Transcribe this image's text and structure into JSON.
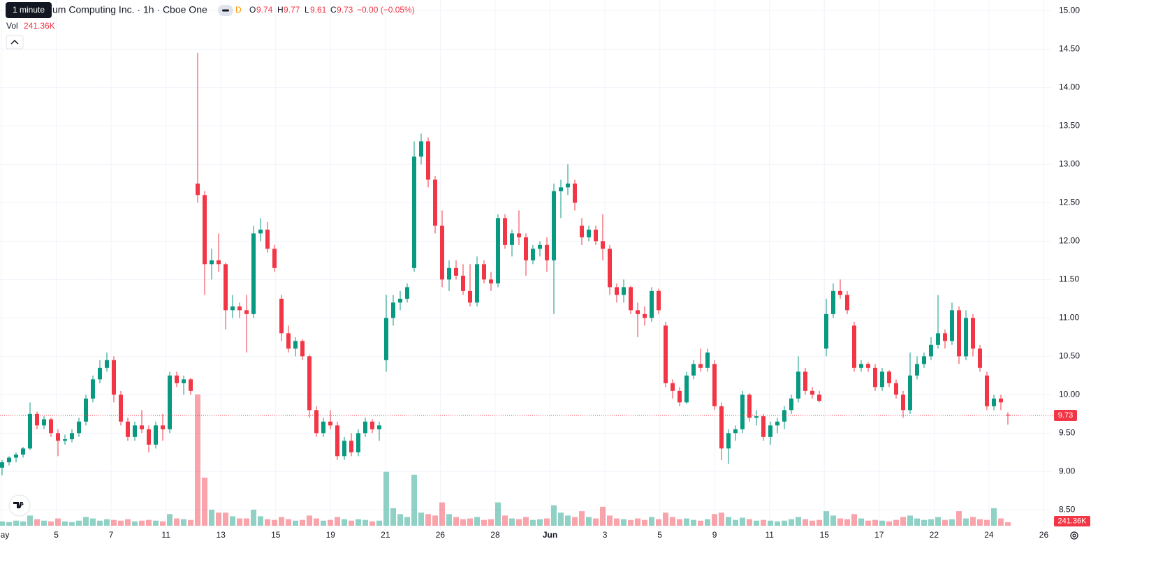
{
  "chart_data": {
    "type": "candlestick",
    "tooltip": "1 minute",
    "title": "um Computing Inc. · 1h · Cboe One",
    "badge": "D",
    "ohlc_labels": [
      "O",
      "H",
      "L",
      "C"
    ],
    "change": "−0.00 (−0.05%)",
    "volume_title": "Vol",
    "volume_label": "241.36K",
    "up_color": "#089981",
    "down_color": "#f23645",
    "grid": true,
    "ylim": [
      8.23,
      15.14
    ],
    "yticks": [
      {
        "value": 8.5,
        "label": "8.50"
      },
      {
        "value": 9,
        "label": "9.00"
      },
      {
        "value": 9.5,
        "label": "9.50"
      },
      {
        "value": 10,
        "label": "10.00"
      },
      {
        "value": 10.5,
        "label": "10.50"
      },
      {
        "value": 11,
        "label": "11.00"
      },
      {
        "value": 11.5,
        "label": "11.50"
      },
      {
        "value": 12,
        "label": "12.00"
      },
      {
        "value": 12.5,
        "label": "12.50"
      },
      {
        "value": 13,
        "label": "13.00"
      },
      {
        "value": 13.5,
        "label": "13.50"
      },
      {
        "value": 14,
        "label": "14.00"
      },
      {
        "value": 14.5,
        "label": "14.50"
      },
      {
        "value": 15,
        "label": "15.00"
      }
    ],
    "xlabels": [
      "May",
      "5",
      "7",
      "11",
      "13",
      "15",
      "19",
      "21",
      "26",
      "28",
      "Jun",
      "3",
      "5",
      "9",
      "11",
      "15",
      "17",
      "22",
      "24",
      "26"
    ],
    "series": [
      {
        "values": [
          [
            9.05,
            9.15,
            8.95,
            9.12
          ],
          [
            9.12,
            9.2,
            9.08,
            9.18
          ],
          [
            9.18,
            9.25,
            9.12,
            9.22
          ],
          [
            9.22,
            9.32,
            9.18,
            9.3
          ],
          [
            9.3,
            9.9,
            9.28,
            9.75
          ],
          [
            9.75,
            9.78,
            9.55,
            9.6
          ],
          [
            9.6,
            9.72,
            9.55,
            9.68
          ],
          [
            9.68,
            9.7,
            9.45,
            9.5
          ],
          [
            9.5,
            9.55,
            9.2,
            9.4
          ],
          [
            9.4,
            9.48,
            9.35,
            9.42
          ],
          [
            9.42,
            9.55,
            9.38,
            9.5
          ],
          [
            9.5,
            9.7,
            9.45,
            9.65
          ],
          [
            9.65,
            10.0,
            9.6,
            9.95
          ],
          [
            9.95,
            10.25,
            9.9,
            10.2
          ],
          [
            10.2,
            10.45,
            10.15,
            10.35
          ],
          [
            10.35,
            10.55,
            10.3,
            10.45
          ],
          [
            10.45,
            10.5,
            9.9,
            10.0
          ],
          [
            10.0,
            10.05,
            9.6,
            9.65
          ],
          [
            9.65,
            9.7,
            9.4,
            9.45
          ],
          [
            9.45,
            9.65,
            9.4,
            9.6
          ],
          [
            9.6,
            9.8,
            9.5,
            9.55
          ],
          [
            9.55,
            9.6,
            9.25,
            9.35
          ],
          [
            9.35,
            9.65,
            9.3,
            9.6
          ],
          [
            9.6,
            9.75,
            9.4,
            9.55
          ],
          [
            9.55,
            10.3,
            9.5,
            10.25
          ],
          [
            10.25,
            10.3,
            10.1,
            10.15
          ],
          [
            10.15,
            10.25,
            10.0,
            10.2
          ],
          [
            10.2,
            10.22,
            10.0,
            10.05
          ],
          [
            12.75,
            14.45,
            12.5,
            12.6
          ],
          [
            12.6,
            12.65,
            11.3,
            11.7
          ],
          [
            11.7,
            11.9,
            11.5,
            11.75
          ],
          [
            11.75,
            12.1,
            11.6,
            11.7
          ],
          [
            11.7,
            11.72,
            10.85,
            11.1
          ],
          [
            11.1,
            11.3,
            11.0,
            11.15
          ],
          [
            11.15,
            11.2,
            11.0,
            11.1
          ],
          [
            11.1,
            11.3,
            10.55,
            11.05
          ],
          [
            11.05,
            12.2,
            11.0,
            12.1
          ],
          [
            12.1,
            12.3,
            12.0,
            12.15
          ],
          [
            12.15,
            12.25,
            11.85,
            11.9
          ],
          [
            11.9,
            11.95,
            11.6,
            11.65
          ],
          [
            11.25,
            11.3,
            10.7,
            10.8
          ],
          [
            10.8,
            10.9,
            10.55,
            10.6
          ],
          [
            10.6,
            10.75,
            10.5,
            10.7
          ],
          [
            10.7,
            10.72,
            10.45,
            10.5
          ],
          [
            10.5,
            10.52,
            9.7,
            9.8
          ],
          [
            9.8,
            9.85,
            9.45,
            9.5
          ],
          [
            9.5,
            9.7,
            9.45,
            9.65
          ],
          [
            9.65,
            9.8,
            9.55,
            9.6
          ],
          [
            9.6,
            9.65,
            9.15,
            9.2
          ],
          [
            9.2,
            9.45,
            9.15,
            9.4
          ],
          [
            9.4,
            9.5,
            9.2,
            9.25
          ],
          [
            9.25,
            9.55,
            9.2,
            9.5
          ],
          [
            9.5,
            9.7,
            9.45,
            9.65
          ],
          [
            9.65,
            9.68,
            9.5,
            9.55
          ],
          [
            9.55,
            9.65,
            9.4,
            9.6
          ],
          [
            10.45,
            11.3,
            10.3,
            11.0
          ],
          [
            11.0,
            11.3,
            10.9,
            11.2
          ],
          [
            11.2,
            11.35,
            11.1,
            11.25
          ],
          [
            11.25,
            11.45,
            11.2,
            11.4
          ],
          [
            11.65,
            13.3,
            11.6,
            13.1
          ],
          [
            13.1,
            13.4,
            13.0,
            13.3
          ],
          [
            13.3,
            13.35,
            12.7,
            12.8
          ],
          [
            12.8,
            12.85,
            12.1,
            12.2
          ],
          [
            12.2,
            12.4,
            11.4,
            11.5
          ],
          [
            11.5,
            11.75,
            11.35,
            11.65
          ],
          [
            11.65,
            11.75,
            11.5,
            11.55
          ],
          [
            11.55,
            11.7,
            11.3,
            11.35
          ],
          [
            11.35,
            11.7,
            11.15,
            11.2
          ],
          [
            11.2,
            11.8,
            11.15,
            11.7
          ],
          [
            11.7,
            11.75,
            11.45,
            11.5
          ],
          [
            11.5,
            11.6,
            11.35,
            11.45
          ],
          [
            11.45,
            12.35,
            11.4,
            12.3
          ],
          [
            12.3,
            12.35,
            11.9,
            11.95
          ],
          [
            11.95,
            12.15,
            11.8,
            12.1
          ],
          [
            12.1,
            12.4,
            11.95,
            12.05
          ],
          [
            12.05,
            12.1,
            11.55,
            11.75
          ],
          [
            11.75,
            11.95,
            11.7,
            11.9
          ],
          [
            11.9,
            12.0,
            11.8,
            11.95
          ],
          [
            11.95,
            12.05,
            11.6,
            11.75
          ],
          [
            11.75,
            12.75,
            11.05,
            12.65
          ],
          [
            12.65,
            12.8,
            12.3,
            12.7
          ],
          [
            12.7,
            13.0,
            12.6,
            12.75
          ],
          [
            12.75,
            12.8,
            12.4,
            12.5
          ],
          [
            12.2,
            12.3,
            11.95,
            12.05
          ],
          [
            12.05,
            12.2,
            12.0,
            12.15
          ],
          [
            12.15,
            12.2,
            11.95,
            12.0
          ],
          [
            12.0,
            12.35,
            11.75,
            11.9
          ],
          [
            11.9,
            11.95,
            11.3,
            11.4
          ],
          [
            11.4,
            11.45,
            11.2,
            11.3
          ],
          [
            11.3,
            11.5,
            11.2,
            11.4
          ],
          [
            11.4,
            11.42,
            11.05,
            11.1
          ],
          [
            11.1,
            11.2,
            10.75,
            11.05
          ],
          [
            11.05,
            11.15,
            10.9,
            11.0
          ],
          [
            11.0,
            11.4,
            10.95,
            11.35
          ],
          [
            11.35,
            11.38,
            11.05,
            11.1
          ],
          [
            10.9,
            10.95,
            10.1,
            10.15
          ],
          [
            10.15,
            10.2,
            9.95,
            10.05
          ],
          [
            10.05,
            10.1,
            9.85,
            9.9
          ],
          [
            9.9,
            10.3,
            9.88,
            10.25
          ],
          [
            10.25,
            10.45,
            10.2,
            10.4
          ],
          [
            10.4,
            10.6,
            10.3,
            10.35
          ],
          [
            10.35,
            10.6,
            10.3,
            10.55
          ],
          [
            10.4,
            10.45,
            9.8,
            9.85
          ],
          [
            9.85,
            9.9,
            9.15,
            9.3
          ],
          [
            9.3,
            9.55,
            9.1,
            9.5
          ],
          [
            9.5,
            9.6,
            9.4,
            9.55
          ],
          [
            9.55,
            10.05,
            9.5,
            10.0
          ],
          [
            10.0,
            10.02,
            9.65,
            9.7
          ],
          [
            9.7,
            9.8,
            9.6,
            9.72
          ],
          [
            9.72,
            9.75,
            9.4,
            9.45
          ],
          [
            9.45,
            9.65,
            9.35,
            9.6
          ],
          [
            9.6,
            9.7,
            9.5,
            9.65
          ],
          [
            9.65,
            9.85,
            9.55,
            9.8
          ],
          [
            9.8,
            10.0,
            9.75,
            9.95
          ],
          [
            9.95,
            10.5,
            9.9,
            10.3
          ],
          [
            10.3,
            10.35,
            10.0,
            10.05
          ],
          [
            10.05,
            10.1,
            9.95,
            10.0
          ],
          [
            10.0,
            10.05,
            9.9,
            9.92
          ],
          [
            10.6,
            11.25,
            10.5,
            11.05
          ],
          [
            11.05,
            11.45,
            11.0,
            11.35
          ],
          [
            11.35,
            11.5,
            11.25,
            11.3
          ],
          [
            11.3,
            11.35,
            11.05,
            11.1
          ],
          [
            10.9,
            10.95,
            10.3,
            10.35
          ],
          [
            10.35,
            10.45,
            10.3,
            10.4
          ],
          [
            10.4,
            10.42,
            10.3,
            10.35
          ],
          [
            10.35,
            10.4,
            10.05,
            10.1
          ],
          [
            10.1,
            10.35,
            10.05,
            10.3
          ],
          [
            10.3,
            10.32,
            10.1,
            10.15
          ],
          [
            10.15,
            10.2,
            9.95,
            10.0
          ],
          [
            10.0,
            10.05,
            9.7,
            9.8
          ],
          [
            9.8,
            10.55,
            9.75,
            10.25
          ],
          [
            10.25,
            10.5,
            10.2,
            10.4
          ],
          [
            10.4,
            10.55,
            10.35,
            10.5
          ],
          [
            10.5,
            10.75,
            10.45,
            10.65
          ],
          [
            10.65,
            11.3,
            10.6,
            10.8
          ],
          [
            10.8,
            10.85,
            10.6,
            10.7
          ],
          [
            10.7,
            11.2,
            10.65,
            11.1
          ],
          [
            11.1,
            11.15,
            10.4,
            10.5
          ],
          [
            10.5,
            11.1,
            10.45,
            11.0
          ],
          [
            11.0,
            11.05,
            10.5,
            10.6
          ],
          [
            10.6,
            10.65,
            10.3,
            10.35
          ],
          [
            10.25,
            10.3,
            9.8,
            9.85
          ],
          [
            9.85,
            10.0,
            9.8,
            9.95
          ],
          [
            9.95,
            10.0,
            9.8,
            9.9
          ],
          [
            9.74,
            9.77,
            9.61,
            9.73
          ]
        ],
        "volume": [
          300000,
          250000,
          350000,
          300000,
          700000,
          450000,
          350000,
          300000,
          500000,
          300000,
          250000,
          350000,
          600000,
          500000,
          350000,
          450000,
          400000,
          350000,
          450000,
          300000,
          350000,
          400000,
          350000,
          300000,
          800000,
          500000,
          450000,
          400000,
          9000000,
          3300000,
          1100000,
          900000,
          900000,
          650000,
          500000,
          500000,
          1100000,
          650000,
          450000,
          400000,
          600000,
          450000,
          350000,
          400000,
          700000,
          500000,
          350000,
          400000,
          600000,
          450000,
          350000,
          450000,
          400000,
          300000,
          350000,
          3700000,
          1200000,
          800000,
          600000,
          3500000,
          900000,
          800000,
          700000,
          1600000,
          800000,
          600000,
          450000,
          500000,
          600000,
          400000,
          450000,
          1600000,
          700000,
          500000,
          450000,
          600000,
          400000,
          450000,
          500000,
          1400000,
          900000,
          700000,
          600000,
          1000000,
          600000,
          500000,
          1300000,
          700000,
          500000,
          450000,
          400000,
          500000,
          400000,
          600000,
          450000,
          900000,
          600000,
          450000,
          500000,
          400000,
          350000,
          450000,
          800000,
          900000,
          600000,
          400000,
          550000,
          450000,
          350000,
          400000,
          350000,
          300000,
          350000,
          450000,
          600000,
          450000,
          350000,
          400000,
          1000000,
          700000,
          500000,
          450000,
          800000,
          500000,
          350000,
          400000,
          350000,
          300000,
          400000,
          600000,
          700000,
          500000,
          400000,
          450000,
          600000,
          400000,
          450000,
          1000000,
          500000,
          600000,
          450000,
          400000,
          1200000,
          500000,
          241360
        ]
      }
    ]
  }
}
